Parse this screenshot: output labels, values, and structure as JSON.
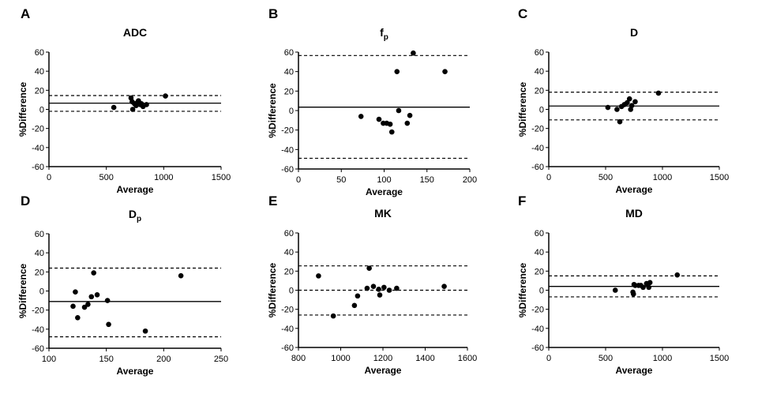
{
  "chart_data": [
    {
      "type": "scatter",
      "panel": "A",
      "title": "ADC",
      "title_sub": "",
      "xlabel": "Average",
      "ylabel": "%Difference",
      "xlim": [
        0,
        1500
      ],
      "ylim": [
        -60,
        60
      ],
      "xticks": [
        0,
        500,
        1000,
        1500
      ],
      "yticks": [
        -60,
        -40,
        -20,
        0,
        20,
        40,
        60
      ],
      "mean": 6.5,
      "upper_loa": 14.5,
      "lower_loa": -2,
      "lower_loa_style": "dashed",
      "points": [
        [
          565,
          2
        ],
        [
          715,
          12
        ],
        [
          725,
          8
        ],
        [
          730,
          0
        ],
        [
          745,
          6
        ],
        [
          760,
          4
        ],
        [
          770,
          7
        ],
        [
          780,
          9
        ],
        [
          795,
          5
        ],
        [
          805,
          6
        ],
        [
          820,
          3
        ],
        [
          850,
          5
        ],
        [
          1015,
          14
        ]
      ]
    },
    {
      "type": "scatter",
      "panel": "B",
      "title": "f",
      "title_sub": "p",
      "xlabel": "Average",
      "ylabel": "%Difference",
      "xlim": [
        0,
        200
      ],
      "ylim": [
        -60,
        60
      ],
      "xticks": [
        0,
        50,
        100,
        150,
        200
      ],
      "yticks": [
        -60,
        -40,
        -20,
        0,
        20,
        40,
        60
      ],
      "mean": 3.5,
      "upper_loa": 56.5,
      "lower_loa": -49,
      "lower_loa_style": "dashed",
      "points": [
        [
          73,
          -6
        ],
        [
          94,
          -9
        ],
        [
          99,
          -13
        ],
        [
          103,
          -13
        ],
        [
          107,
          -14
        ],
        [
          109,
          -22
        ],
        [
          115,
          40
        ],
        [
          117,
          0
        ],
        [
          127,
          -13
        ],
        [
          130,
          -5
        ],
        [
          134,
          59
        ],
        [
          171,
          40
        ]
      ]
    },
    {
      "type": "scatter",
      "panel": "C",
      "title": "D",
      "title_sub": "",
      "xlabel": "Average",
      "ylabel": "%Difference",
      "xlim": [
        0,
        1500
      ],
      "ylim": [
        -60,
        60
      ],
      "xticks": [
        0,
        500,
        1000,
        1500
      ],
      "yticks": [
        -60,
        -40,
        -20,
        0,
        20,
        40,
        60
      ],
      "mean": 3.5,
      "upper_loa": 18,
      "lower_loa": -11,
      "lower_loa_style": "dashed",
      "points": [
        [
          520,
          2
        ],
        [
          600,
          0
        ],
        [
          625,
          -13
        ],
        [
          640,
          3
        ],
        [
          665,
          5
        ],
        [
          690,
          7
        ],
        [
          710,
          11
        ],
        [
          720,
          0
        ],
        [
          730,
          4
        ],
        [
          760,
          8
        ],
        [
          965,
          17
        ]
      ]
    },
    {
      "type": "scatter",
      "panel": "D",
      "title": "D",
      "title_sub": "p",
      "xlabel": "Average",
      "ylabel": "%Difference",
      "xlim": [
        100,
        250
      ],
      "ylim": [
        -60,
        60
      ],
      "xticks": [
        100,
        150,
        200,
        250
      ],
      "yticks": [
        -60,
        -40,
        -20,
        0,
        20,
        40,
        60
      ],
      "mean": -11,
      "upper_loa": 24,
      "lower_loa": -48,
      "lower_loa_style": "dashed",
      "points": [
        [
          121,
          -16
        ],
        [
          123,
          -1
        ],
        [
          125,
          -28
        ],
        [
          131,
          -17
        ],
        [
          134,
          -14
        ],
        [
          137,
          -6
        ],
        [
          139,
          19
        ],
        [
          142,
          -4
        ],
        [
          151,
          -10
        ],
        [
          152,
          -35
        ],
        [
          184,
          -42
        ],
        [
          215,
          16
        ]
      ]
    },
    {
      "type": "scatter",
      "panel": "E",
      "title": "MK",
      "title_sub": "",
      "xlabel": "Average",
      "ylabel": "%Difference",
      "xlim": [
        800,
        1600
      ],
      "ylim": [
        -60,
        60
      ],
      "xticks": [
        800,
        1000,
        1200,
        1400,
        1600
      ],
      "yticks": [
        -60,
        -40,
        -20,
        0,
        20,
        40,
        60
      ],
      "mean": 0,
      "upper_loa": 25.5,
      "lower_loa": -26,
      "lower_loa_style": "dashed",
      "mean_style": "dashed",
      "points": [
        [
          895,
          15
        ],
        [
          965,
          -27
        ],
        [
          1065,
          -16
        ],
        [
          1080,
          -6
        ],
        [
          1125,
          2
        ],
        [
          1135,
          23
        ],
        [
          1155,
          4
        ],
        [
          1180,
          1
        ],
        [
          1185,
          -5
        ],
        [
          1205,
          3
        ],
        [
          1230,
          0
        ],
        [
          1265,
          2
        ],
        [
          1490,
          4
        ]
      ]
    },
    {
      "type": "scatter",
      "panel": "F",
      "title": "MD",
      "title_sub": "",
      "xlabel": "Average",
      "ylabel": "%Difference",
      "xlim": [
        0,
        1500
      ],
      "ylim": [
        -60,
        60
      ],
      "xticks": [
        0,
        500,
        1000,
        1500
      ],
      "yticks": [
        -60,
        -40,
        -20,
        0,
        20,
        40,
        60
      ],
      "mean": 4,
      "upper_loa": 15,
      "lower_loa": -7,
      "lower_loa_style": "dashed",
      "points": [
        [
          585,
          0
        ],
        [
          740,
          -2
        ],
        [
          745,
          -4
        ],
        [
          750,
          6
        ],
        [
          760,
          5
        ],
        [
          790,
          5
        ],
        [
          810,
          5
        ],
        [
          830,
          3
        ],
        [
          860,
          7
        ],
        [
          880,
          3
        ],
        [
          890,
          8
        ],
        [
          1130,
          16
        ]
      ]
    }
  ]
}
